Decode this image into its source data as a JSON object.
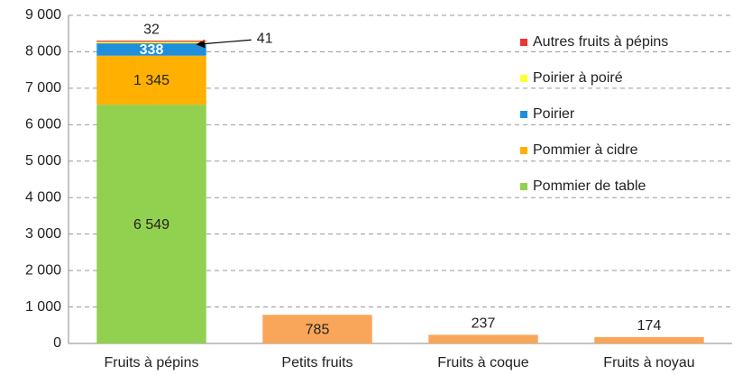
{
  "chart_data": {
    "type": "stacked_bar",
    "categories": [
      "Fruits à pépins",
      "Petits fruits",
      "Fruits à coque",
      "Fruits à noyau"
    ],
    "series": [
      {
        "name": "Pommier de table",
        "color": "#92d050",
        "values": [
          6549,
          null,
          null,
          null
        ],
        "value_labels": [
          "6 549",
          null,
          null,
          null
        ]
      },
      {
        "name": "Pommier à cidre",
        "color": "#ffb000",
        "values": [
          1345,
          null,
          null,
          null
        ],
        "value_labels": [
          "1 345",
          null,
          null,
          null
        ]
      },
      {
        "name": "Poirier",
        "color": "#1f8fdc",
        "values": [
          338,
          null,
          null,
          null
        ]
      },
      {
        "name": "Poirier à poiré",
        "color": "#ffff33",
        "values": [
          41,
          null,
          null,
          null
        ]
      },
      {
        "name": "Autres fruits à pépins",
        "color": "#ee3333",
        "values": [
          32,
          null,
          null,
          null
        ]
      },
      {
        "color": "#f9a65a",
        "values": [
          null,
          785,
          237,
          174
        ]
      }
    ],
    "ylim": [
      0,
      9000
    ],
    "yticks": [
      0,
      {
        "value": 1000,
        "label": "1 000"
      },
      {
        "value": 2000,
        "label": "2 000"
      },
      {
        "value": 3000,
        "label": "3 000"
      },
      {
        "value": 4000,
        "label": "4 000"
      },
      {
        "value": 5000,
        "label": "5 000"
      },
      {
        "value": 6000,
        "label": "6 000"
      },
      {
        "value": 7000,
        "label": "7 000"
      },
      {
        "value": 8000,
        "label": "8 000"
      },
      {
        "value": 9000,
        "label": "9 000"
      }
    ],
    "grid": true,
    "legend": "top-right"
  }
}
